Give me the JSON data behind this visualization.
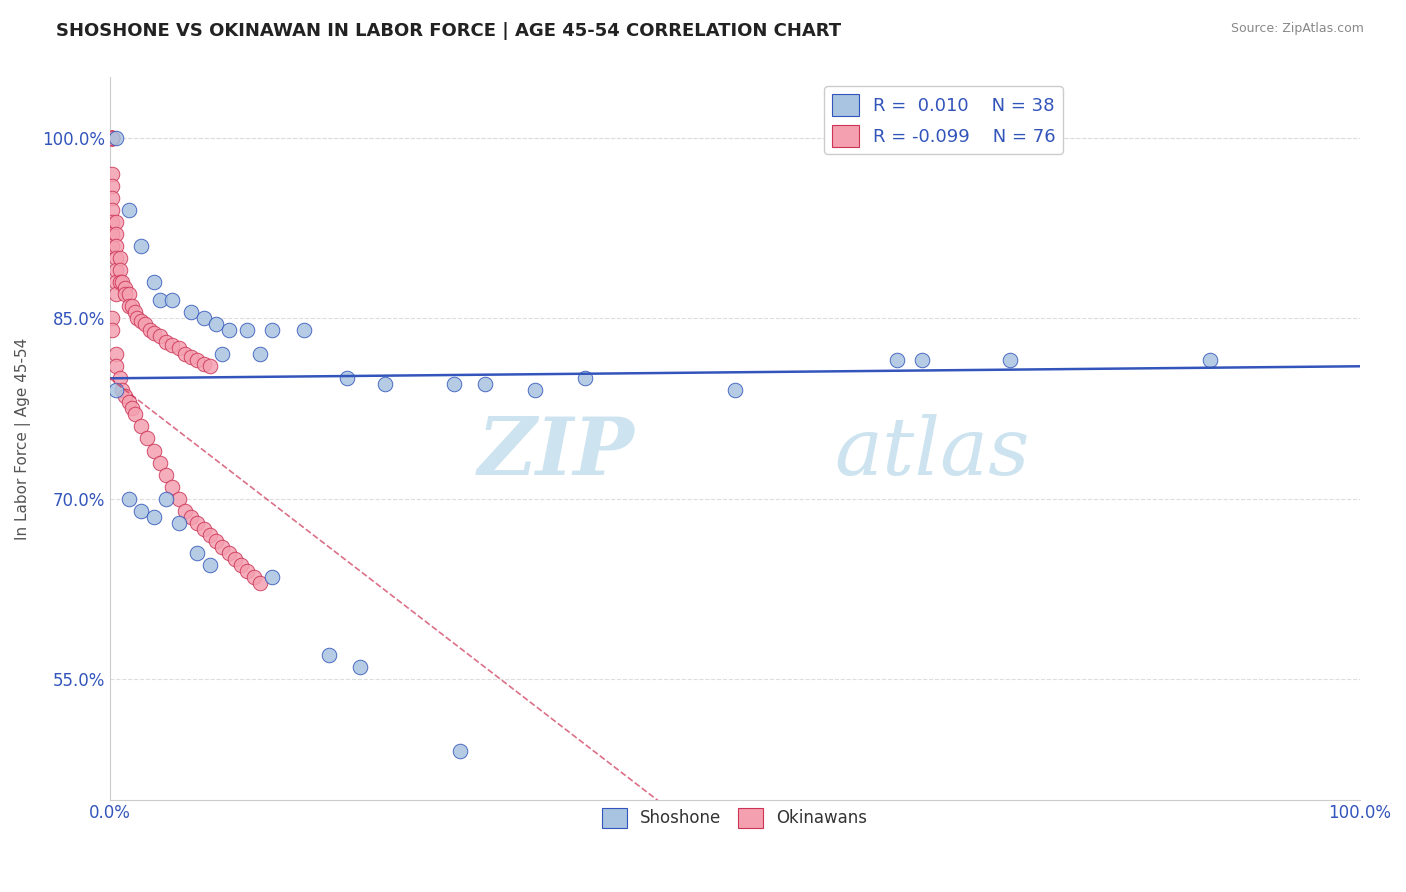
{
  "title": "SHOSHONE VS OKINAWAN IN LABOR FORCE | AGE 45-54 CORRELATION CHART",
  "source_text": "Source: ZipAtlas.com",
  "ylabel": "In Labor Force | Age 45-54",
  "xlim": [
    0.0,
    1.0
  ],
  "ylim": [
    0.45,
    1.05
  ],
  "yticks": [
    0.55,
    0.7,
    0.85,
    1.0
  ],
  "ytick_labels": [
    "55.0%",
    "70.0%",
    "85.0%",
    "100.0%"
  ],
  "xtick_labels": [
    "0.0%",
    "100.0%"
  ],
  "legend_r_blue": "0.010",
  "legend_n_blue": "38",
  "legend_r_pink": "-0.099",
  "legend_n_pink": "76",
  "blue_color": "#a8c4e0",
  "pink_color": "#f4a0b0",
  "trend_blue_color": "#3355bb",
  "trend_pink_color": "#cc3355",
  "watermark_color": "#cde4f0",
  "shoshone_x": [
    0.005,
    0.015,
    0.025,
    0.035,
    0.04,
    0.05,
    0.065,
    0.075,
    0.085,
    0.095,
    0.11,
    0.13,
    0.155,
    0.09,
    0.12,
    0.19,
    0.22,
    0.275,
    0.3,
    0.34,
    0.38,
    0.5,
    0.63,
    0.65,
    0.72,
    0.88,
    0.005,
    0.015,
    0.025,
    0.035,
    0.045,
    0.055,
    0.07,
    0.08,
    0.13,
    0.175,
    0.2,
    0.28
  ],
  "shoshone_y": [
    1.0,
    0.94,
    0.91,
    0.88,
    0.865,
    0.865,
    0.855,
    0.85,
    0.845,
    0.84,
    0.84,
    0.84,
    0.84,
    0.82,
    0.82,
    0.8,
    0.795,
    0.795,
    0.795,
    0.79,
    0.8,
    0.79,
    0.815,
    0.815,
    0.815,
    0.815,
    0.79,
    0.7,
    0.69,
    0.685,
    0.7,
    0.68,
    0.655,
    0.645,
    0.635,
    0.57,
    0.56,
    0.49
  ],
  "okinawan_x": [
    0.002,
    0.002,
    0.002,
    0.002,
    0.002,
    0.002,
    0.002,
    0.002,
    0.002,
    0.002,
    0.002,
    0.002,
    0.002,
    0.002,
    0.002,
    0.005,
    0.005,
    0.005,
    0.005,
    0.005,
    0.005,
    0.005,
    0.008,
    0.008,
    0.008,
    0.01,
    0.012,
    0.012,
    0.015,
    0.015,
    0.018,
    0.02,
    0.022,
    0.025,
    0.028,
    0.032,
    0.035,
    0.04,
    0.045,
    0.05,
    0.055,
    0.06,
    0.065,
    0.07,
    0.075,
    0.08,
    0.002,
    0.002,
    0.005,
    0.005,
    0.008,
    0.01,
    0.012,
    0.015,
    0.018,
    0.02,
    0.025,
    0.03,
    0.035,
    0.04,
    0.045,
    0.05,
    0.055,
    0.06,
    0.065,
    0.07,
    0.075,
    0.08,
    0.085,
    0.09,
    0.095,
    0.1,
    0.105,
    0.11,
    0.115,
    0.12
  ],
  "okinawan_y": [
    1.0,
    1.0,
    1.0,
    1.0,
    1.0,
    1.0,
    1.0,
    1.0,
    0.97,
    0.96,
    0.95,
    0.94,
    0.93,
    0.92,
    0.91,
    0.93,
    0.92,
    0.91,
    0.9,
    0.89,
    0.88,
    0.87,
    0.9,
    0.89,
    0.88,
    0.88,
    0.875,
    0.87,
    0.87,
    0.86,
    0.86,
    0.855,
    0.85,
    0.848,
    0.845,
    0.84,
    0.838,
    0.835,
    0.83,
    0.828,
    0.825,
    0.82,
    0.818,
    0.815,
    0.812,
    0.81,
    0.85,
    0.84,
    0.82,
    0.81,
    0.8,
    0.79,
    0.785,
    0.78,
    0.775,
    0.77,
    0.76,
    0.75,
    0.74,
    0.73,
    0.72,
    0.71,
    0.7,
    0.69,
    0.685,
    0.68,
    0.675,
    0.67,
    0.665,
    0.66,
    0.655,
    0.65,
    0.645,
    0.64,
    0.635,
    0.63
  ]
}
